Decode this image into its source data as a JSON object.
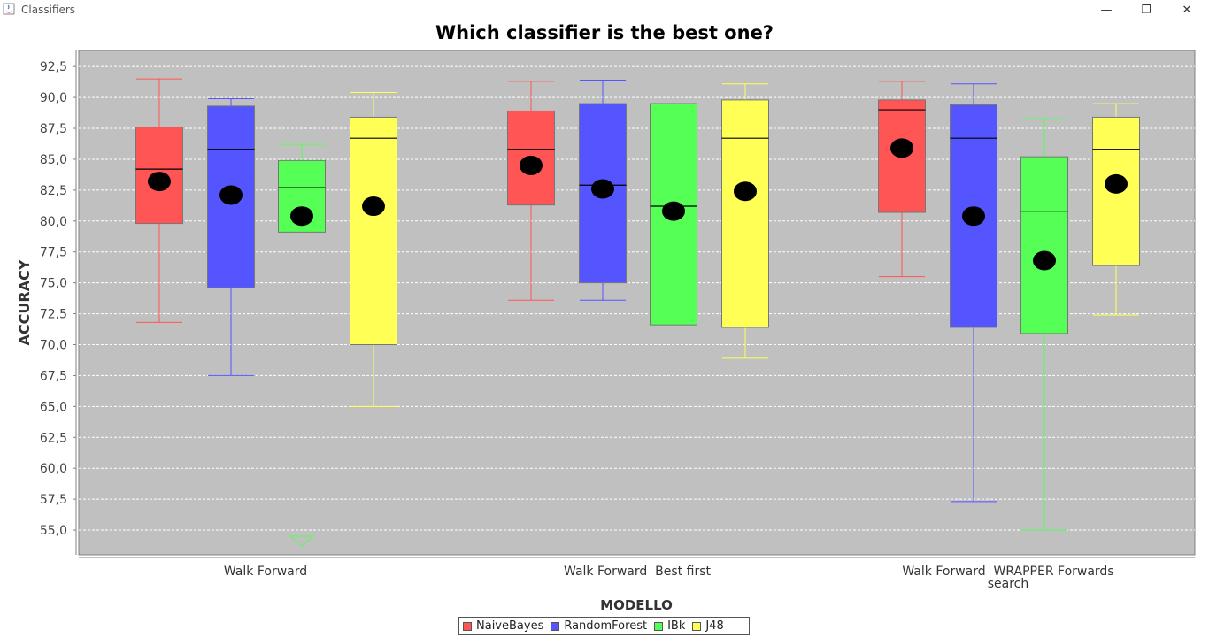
{
  "window": {
    "title": "Classifiers",
    "minimize_icon": "minimize-icon",
    "maximize_icon": "restore-icon",
    "close_icon": "close-icon"
  },
  "chart_data": {
    "type": "boxplot",
    "title": "Which classifier is the best one?",
    "xlabel": "MODELLO",
    "ylabel": "ACCURACY",
    "ylim": [
      53.0,
      93.8
    ],
    "yticks": [
      "92,5",
      "90,0",
      "87,5",
      "85,0",
      "82,5",
      "80,0",
      "77,5",
      "75,0",
      "72,5",
      "70,0",
      "67,5",
      "65,0",
      "62,5",
      "60,0",
      "57,5",
      "55,0"
    ],
    "ytick_values": [
      92.5,
      90.0,
      87.5,
      85.0,
      82.5,
      80.0,
      77.5,
      75.0,
      72.5,
      70.0,
      67.5,
      65.0,
      62.5,
      60.0,
      57.5,
      55.0
    ],
    "grid": true,
    "legend_position": "bottom",
    "categories": [
      [
        "Walk Forward"
      ],
      [
        "Walk Forward  Best first"
      ],
      [
        "Walk Forward  WRAPPER Forwards",
        "search"
      ]
    ],
    "series": [
      {
        "name": "NaiveBayes",
        "color": "#ff5555",
        "boxes": [
          {
            "min": 71.8,
            "q1": 79.8,
            "median": 84.2,
            "q3": 87.6,
            "max": 91.5,
            "mean": 83.2
          },
          {
            "min": 73.6,
            "q1": 81.3,
            "median": 85.8,
            "q3": 88.9,
            "max": 91.3,
            "mean": 84.5
          },
          {
            "min": 75.5,
            "q1": 80.7,
            "median": 89.0,
            "q3": 89.8,
            "max": 91.3,
            "mean": 85.9
          }
        ]
      },
      {
        "name": "RandomForest",
        "color": "#5555ff",
        "boxes": [
          {
            "min": 67.5,
            "q1": 74.6,
            "median": 85.8,
            "q3": 89.3,
            "max": 89.9,
            "mean": 82.1
          },
          {
            "min": 73.6,
            "q1": 75.0,
            "median": 82.9,
            "q3": 89.5,
            "max": 91.4,
            "mean": 82.6
          },
          {
            "min": 57.3,
            "q1": 71.4,
            "median": 86.7,
            "q3": 89.4,
            "max": 91.1,
            "mean": 80.4
          }
        ]
      },
      {
        "name": "IBk",
        "color": "#55ff55",
        "boxes": [
          {
            "min": 79.1,
            "q1": 79.1,
            "median": 82.7,
            "q3": 84.9,
            "max": 86.2,
            "mean": 80.4,
            "outliers_below": true
          },
          {
            "min": 71.6,
            "q1": 71.6,
            "median": 81.2,
            "q3": 89.5,
            "max": 89.5,
            "mean": 80.8
          },
          {
            "min": 55.0,
            "q1": 70.9,
            "median": 80.8,
            "q3": 85.2,
            "max": 88.3,
            "mean": 76.8
          }
        ]
      },
      {
        "name": "J48",
        "color": "#ffff55",
        "boxes": [
          {
            "min": 65.0,
            "q1": 70.0,
            "median": 86.7,
            "q3": 88.4,
            "max": 90.4,
            "mean": 81.2
          },
          {
            "min": 68.9,
            "q1": 71.4,
            "median": 86.7,
            "q3": 89.8,
            "max": 91.1,
            "mean": 82.4
          },
          {
            "min": 72.4,
            "q1": 76.4,
            "median": 85.8,
            "q3": 88.4,
            "max": 89.5,
            "mean": 83.0
          }
        ]
      }
    ]
  }
}
